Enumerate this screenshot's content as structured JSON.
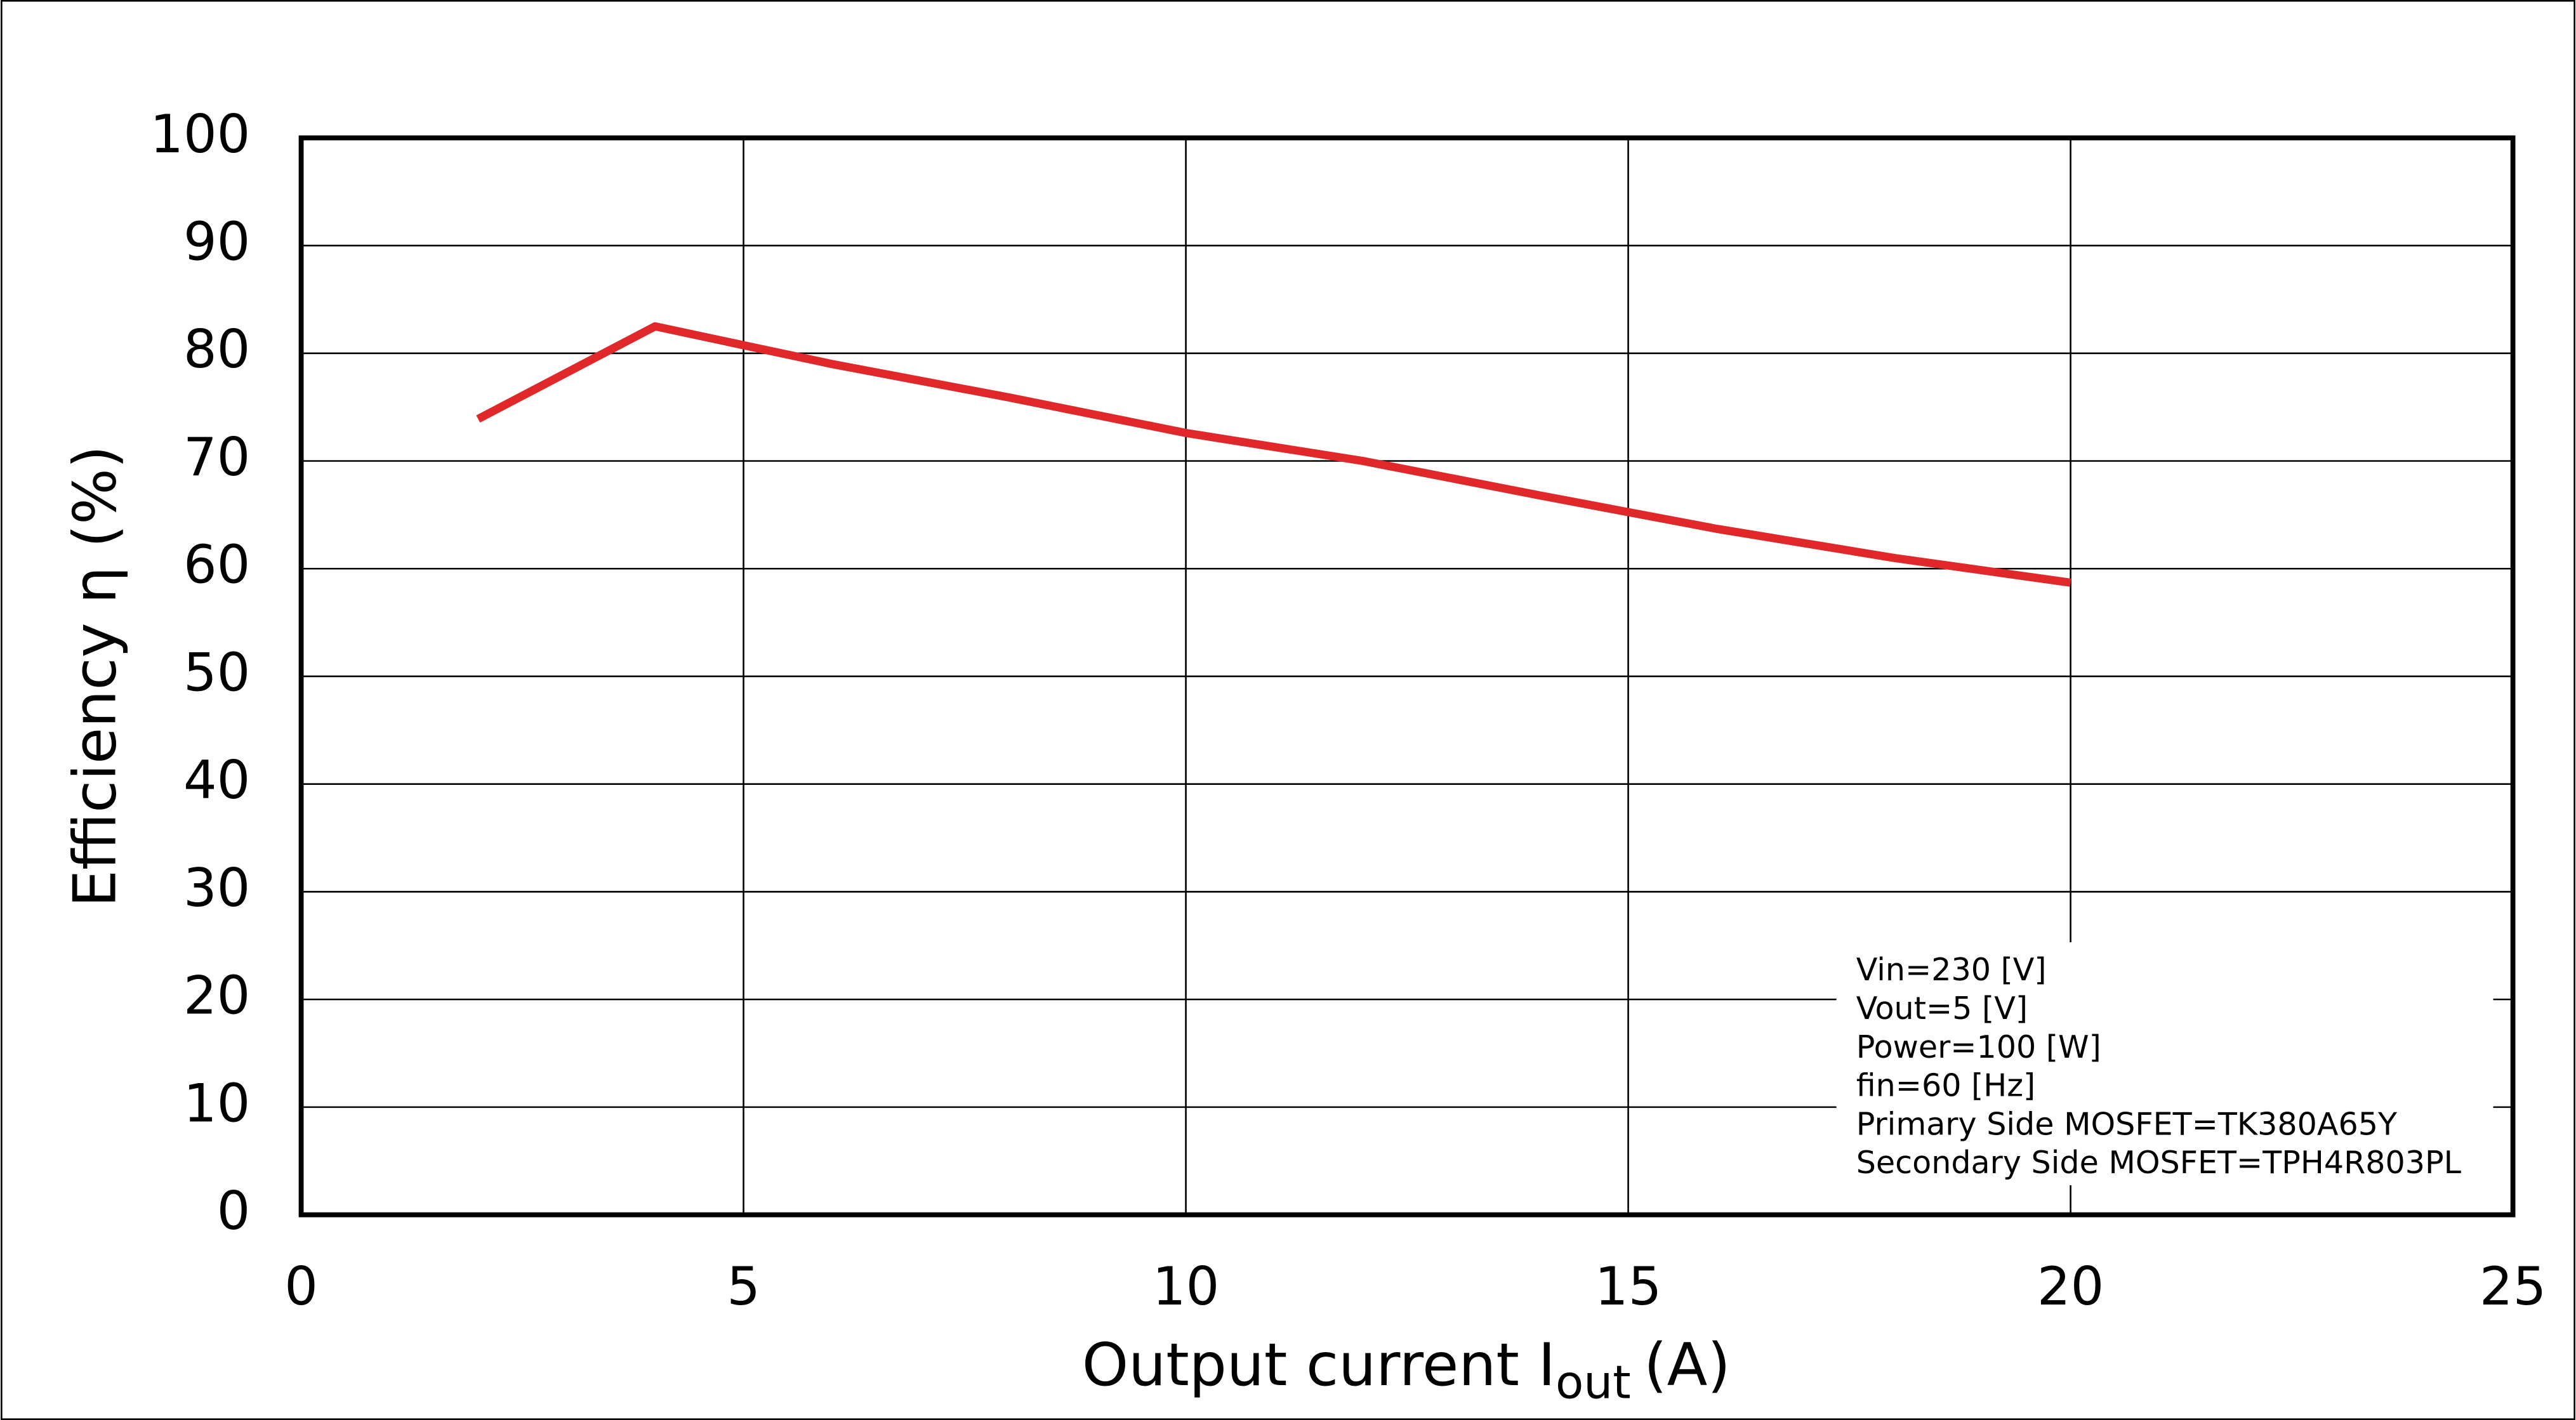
{
  "chart_data": {
    "type": "line",
    "xlabel": {
      "text": "Output current  I",
      "subscript": "out",
      "unit": "(A)"
    },
    "ylabel": "Efficiency  η (%)",
    "x": [
      2,
      4,
      6,
      8,
      10,
      12,
      14,
      16,
      18,
      20
    ],
    "series": [
      {
        "color": "#e0282a",
        "values": [
          73.9,
          82.5,
          79,
          75.9,
          72.6,
          70,
          66.8,
          63.7,
          61,
          58.7
        ]
      }
    ],
    "xlim": [
      0,
      25
    ],
    "xticks": [
      0,
      5,
      10,
      15,
      20,
      25
    ],
    "ylim": [
      0,
      100
    ],
    "yticks": [
      0,
      10,
      20,
      30,
      40,
      50,
      60,
      70,
      80,
      90,
      100
    ],
    "grid": true,
    "annotation": [
      "Vin=230 [V]",
      "Vout=5 [V]",
      "Power=100 [W]",
      "fin=60 [Hz]",
      "Primary Side MOSFET=TK380A65Y",
      "Secondary Side MOSFET=TPH4R803PL"
    ]
  }
}
